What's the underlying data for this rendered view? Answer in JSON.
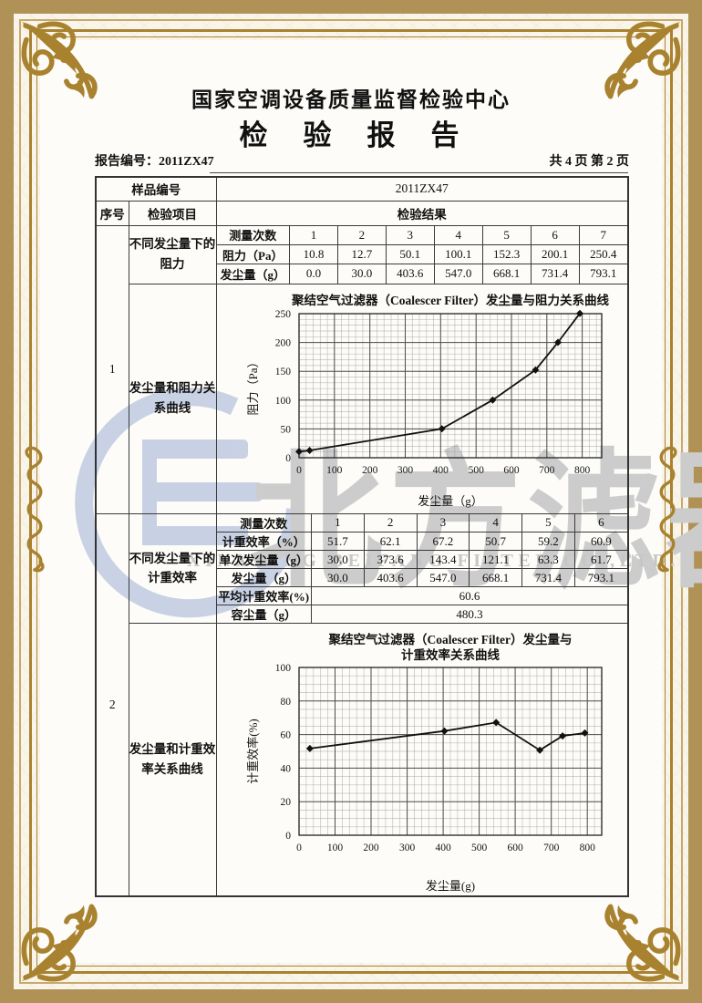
{
  "page": {
    "center_name": "国家空调设备质量监督检验中心",
    "doc_title": "检　验　报　告",
    "report_no": "报告编号：2011ZX47",
    "page_info": "共 4 页 第 2 页"
  },
  "watermark": {
    "cn": "北方滤器",
    "en": "XINXIANG BEIFANG FILTER CO.,LTD."
  },
  "icons": {
    "corner": "floral-corner-ornament",
    "scroll": "scroll-edge-ornament",
    "logo": "beifang-filter-b-logo"
  },
  "colors": {
    "frame_gold": "#a8822e",
    "outer_band_tan": "#b09156",
    "watermark_blue": "#c2cde1",
    "watermark_gray": "#cccccc",
    "table_line": "#3b3b3b"
  },
  "table": {
    "sample_label": "样品编号",
    "sample_value": "2011ZX47",
    "headers": {
      "seq": "序号",
      "item": "检验项目",
      "result": "检验结果"
    },
    "section1": {
      "seq": "1",
      "item_rows": "不同发尘量下的阻力",
      "item_chart": "发尘量和阻力关系曲线",
      "rows": [
        {
          "label": "测量次数",
          "values": [
            "1",
            "2",
            "3",
            "4",
            "5",
            "6",
            "7"
          ]
        },
        {
          "label": "阻力（Pa）",
          "values": [
            "10.8",
            "12.7",
            "50.1",
            "100.1",
            "152.3",
            "200.1",
            "250.4"
          ]
        },
        {
          "label": "发尘量（g）",
          "values": [
            "0.0",
            "30.0",
            "403.6",
            "547.0",
            "668.1",
            "731.4",
            "793.1"
          ]
        }
      ]
    },
    "section2": {
      "seq": "2",
      "item_rows": "不同发尘量下的计重效率",
      "item_chart": "发尘量和计重效率关系曲线",
      "rows": [
        {
          "label": "测量次数",
          "values": [
            "1",
            "2",
            "3",
            "4",
            "5",
            "6"
          ]
        },
        {
          "label": "计重效率（%）",
          "values": [
            "51.7",
            "62.1",
            "67.2",
            "50.7",
            "59.2",
            "60.9"
          ]
        },
        {
          "label": "单次发尘量（g）",
          "values": [
            "30.0",
            "373.6",
            "143.4",
            "121.1",
            "63.3",
            "61.7"
          ]
        },
        {
          "label": "发尘量（g）",
          "values": [
            "30.0",
            "403.6",
            "547.0",
            "668.1",
            "731.4",
            "793.1"
          ]
        }
      ],
      "summary_rows": [
        {
          "label": "平均计重效率(%)",
          "value": "60.6"
        },
        {
          "label": "容尘量（g）",
          "value": "480.3"
        }
      ]
    }
  },
  "chart_data": [
    {
      "type": "line",
      "title": "聚结空气过滤器（Coalescer Filter）发尘量与阻力关系曲线",
      "xlabel": "发尘量（g）",
      "ylabel": "阻力（Pa）",
      "x": [
        0,
        30,
        403.6,
        547.0,
        668.1,
        731.4,
        793.1
      ],
      "y": [
        10.8,
        12.7,
        50.1,
        100.1,
        152.3,
        200.1,
        250.4
      ],
      "xlim": [
        0,
        855
      ],
      "ylim": [
        0,
        250
      ],
      "xticks": [
        0,
        100,
        200,
        300,
        400,
        500,
        600,
        700,
        800
      ],
      "yticks": [
        0,
        50,
        100,
        150,
        200,
        250
      ],
      "minor_x": 20,
      "minor_y": 10,
      "grid": "fine-graph-paper",
      "marker": "diamond",
      "legend": "none"
    },
    {
      "type": "line",
      "title": [
        "聚结空气过滤器（Coalescer Filter）发尘量与",
        "计重效率关系曲线"
      ],
      "xlabel": "发尘量(g)",
      "ylabel": "计重效率(%)",
      "x": [
        30,
        403.6,
        547.0,
        668.1,
        731.4,
        793.1
      ],
      "y": [
        51.7,
        62.1,
        67.2,
        50.7,
        59.2,
        60.9
      ],
      "xlim": [
        0,
        840
      ],
      "ylim": [
        0,
        100
      ],
      "xticks": [
        0,
        100,
        200,
        300,
        400,
        500,
        600,
        700,
        800
      ],
      "yticks": [
        0,
        20,
        40,
        60,
        80,
        100
      ],
      "minor_x": 20,
      "minor_y": 5,
      "grid": "fine-graph-paper",
      "marker": "diamond",
      "legend": "none"
    }
  ]
}
